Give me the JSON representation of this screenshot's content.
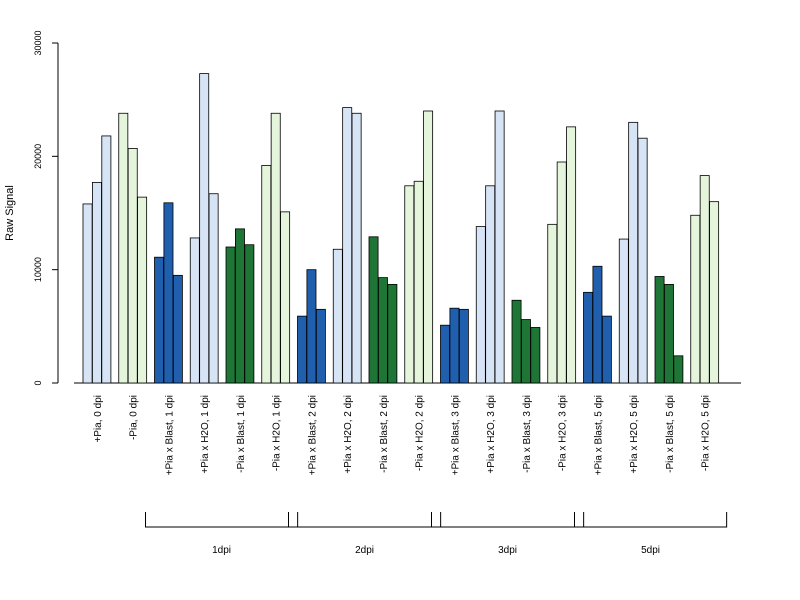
{
  "chart_data": {
    "type": "bar",
    "title": "",
    "xlabel": "",
    "ylabel": "Raw Signal",
    "ylim": [
      0,
      30000
    ],
    "yticks": [
      0,
      10000,
      20000,
      30000
    ],
    "grid": false,
    "legend": "none",
    "categories": [
      "+Pia, 0 dpi",
      "-Pia, 0 dpi",
      "+Pia x Blast, 1 dpi",
      "+Pia x H2O, 1 dpi",
      "-Pia x Blast, 1 dpi",
      "-Pia x H2O, 1 dpi",
      "+Pia x Blast, 2 dpi",
      "+Pia x H2O, 2 dpi",
      "-Pia x Blast, 2 dpi",
      "-Pia x H2O, 2 dpi",
      "+Pia x Blast, 3 dpi",
      "+Pia x H2O, 3 dpi",
      "-Pia x Blast, 3 dpi",
      "-Pia x H2O, 3 dpi",
      "+Pia x Blast, 5 dpi",
      "+Pia x H2O, 5 dpi",
      "-Pia x Blast, 5 dpi",
      "-Pia x H2O, 5 dpi"
    ],
    "colors": [
      "#d6e4f5",
      "#e4f5dc",
      "#1f5fae",
      "#d6e4f5",
      "#1e7535",
      "#e4f5dc",
      "#1f5fae",
      "#d6e4f5",
      "#1e7535",
      "#e4f5dc",
      "#1f5fae",
      "#d6e4f5",
      "#1e7535",
      "#e4f5dc",
      "#1f5fae",
      "#d6e4f5",
      "#1e7535",
      "#e4f5dc"
    ],
    "replicates_per_category": 3,
    "values": [
      [
        15800,
        17700,
        21800
      ],
      [
        23800,
        20700,
        16400
      ],
      [
        11100,
        15900,
        9500
      ],
      [
        12800,
        27300,
        16700
      ],
      [
        12000,
        13600,
        12200
      ],
      [
        19200,
        23800,
        15100
      ],
      [
        5900,
        10000,
        6500
      ],
      [
        11800,
        24300,
        23800
      ],
      [
        12900,
        9300,
        8700
      ],
      [
        17400,
        17800,
        24000
      ],
      [
        5100,
        6600,
        6500
      ],
      [
        13800,
        17400,
        24000
      ],
      [
        7300,
        5600,
        4900
      ],
      [
        14000,
        19500,
        22600
      ],
      [
        8000,
        10300,
        5900
      ],
      [
        12700,
        23000,
        21600
      ],
      [
        9400,
        8700,
        2400
      ],
      [
        14800,
        18300,
        16000
      ]
    ],
    "groups": [
      {
        "label": "1dpi",
        "from_category": 2,
        "to_category": 5
      },
      {
        "label": "2dpi",
        "from_category": 6,
        "to_category": 9
      },
      {
        "label": "3dpi",
        "from_category": 10,
        "to_category": 13
      },
      {
        "label": "5dpi",
        "from_category": 14,
        "to_category": 17
      }
    ]
  }
}
